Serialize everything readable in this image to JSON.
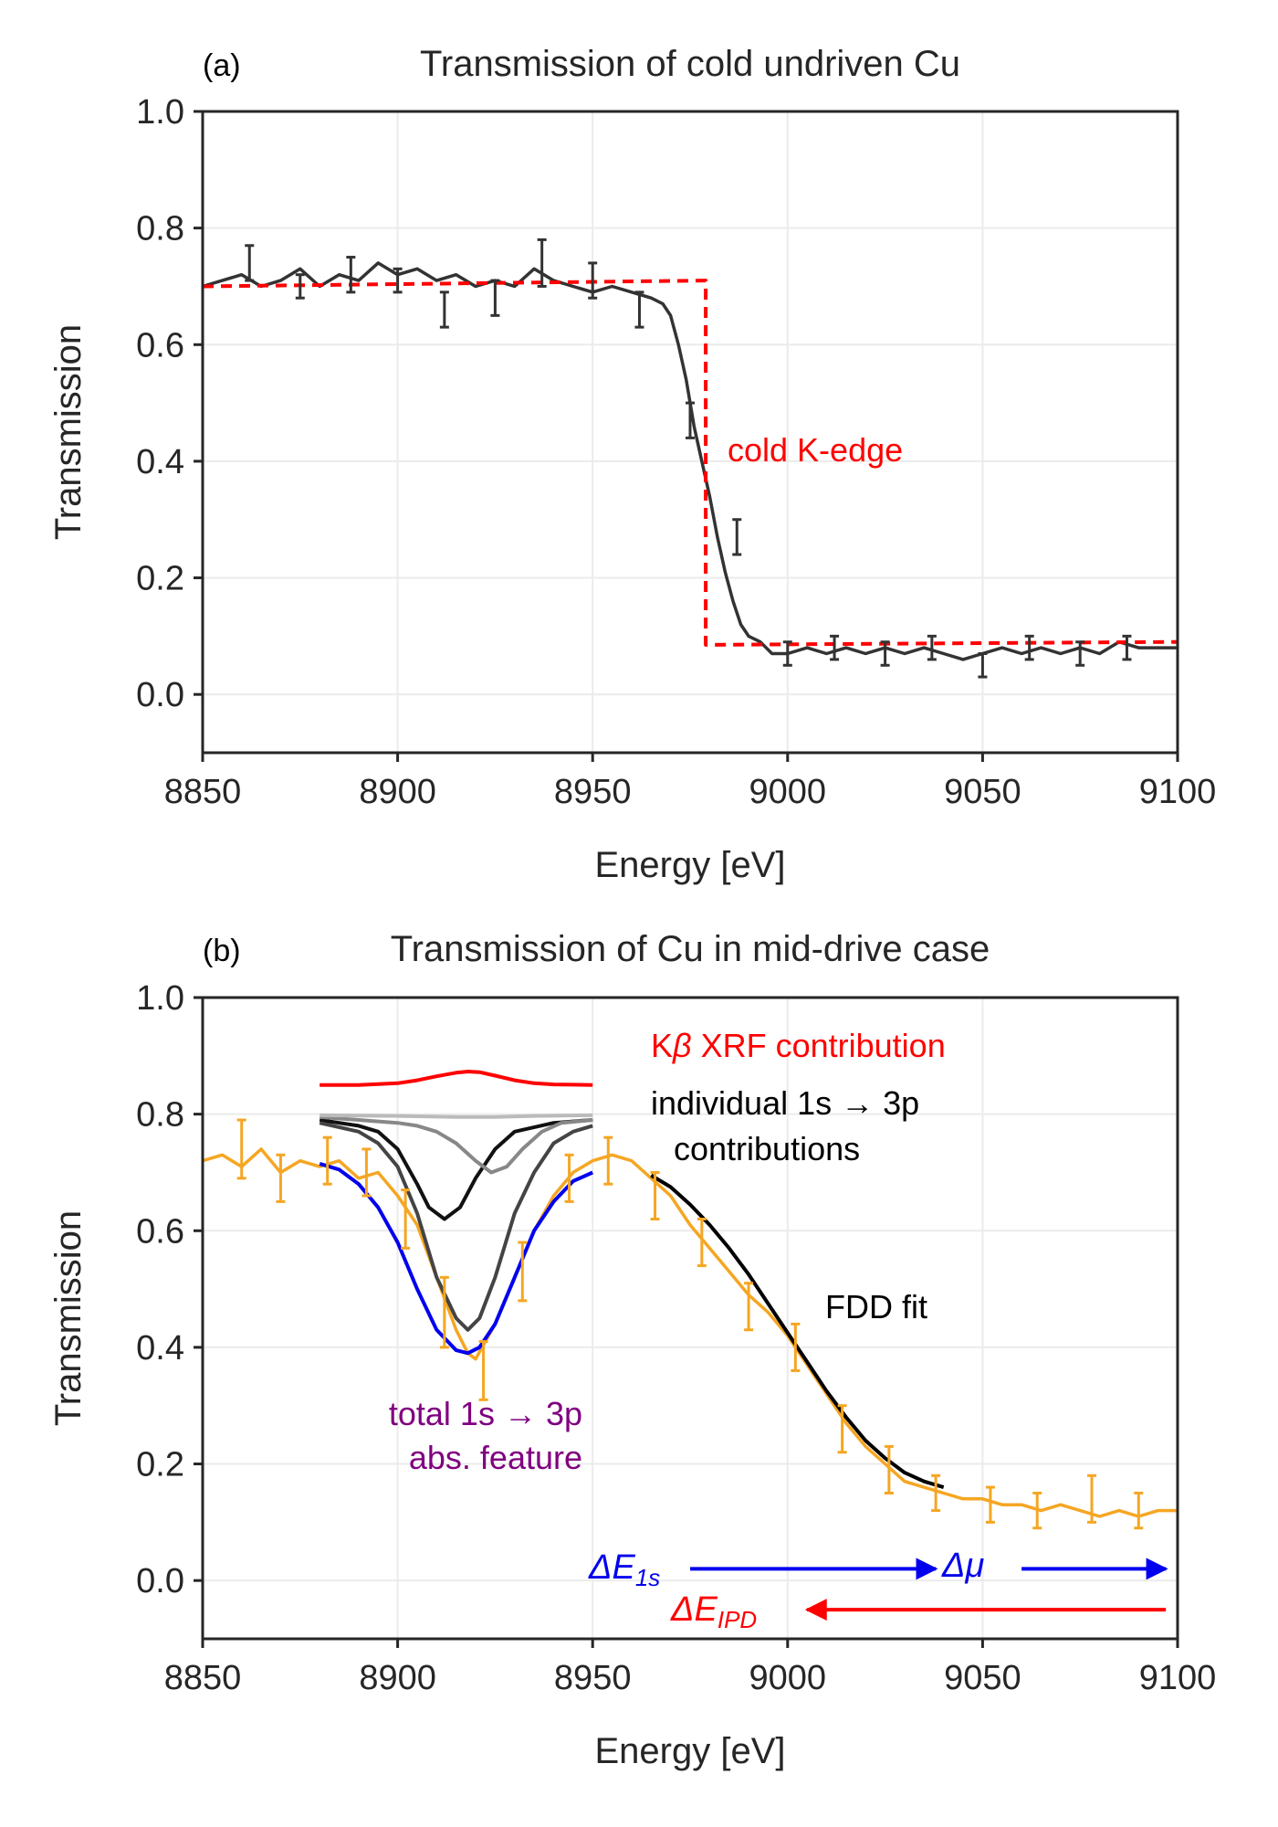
{
  "chart_data": [
    {
      "panel": "(a)",
      "type": "line",
      "title": "Transmission of cold undriven Cu",
      "xlabel": "Energy [eV]",
      "ylabel": "Transmission",
      "xlim": [
        8850,
        9100
      ],
      "ylim": [
        -0.1,
        1.0
      ],
      "xticks": [
        "8850",
        "8900",
        "8950",
        "9000",
        "9050",
        "9100"
      ],
      "yticks": [
        "1.0",
        "0.8",
        "0.6",
        "0.4",
        "0.2",
        "0.0"
      ],
      "grid": true,
      "series": [
        {
          "name": "measured transmission",
          "color": "#333333",
          "x": [
            8850,
            8855,
            8860,
            8865,
            8870,
            8875,
            8880,
            8885,
            8890,
            8895,
            8900,
            8905,
            8910,
            8915,
            8920,
            8925,
            8930,
            8935,
            8940,
            8945,
            8950,
            8955,
            8960,
            8965,
            8968,
            8970,
            8972,
            8974,
            8976,
            8978,
            8980,
            8982,
            8984,
            8986,
            8988,
            8990,
            8993,
            8996,
            9000,
            9005,
            9010,
            9015,
            9020,
            9025,
            9030,
            9035,
            9040,
            9045,
            9050,
            9055,
            9060,
            9065,
            9070,
            9075,
            9080,
            9085,
            9090,
            9095,
            9100
          ],
          "y": [
            0.7,
            0.71,
            0.72,
            0.7,
            0.71,
            0.73,
            0.7,
            0.72,
            0.71,
            0.74,
            0.72,
            0.73,
            0.71,
            0.72,
            0.7,
            0.71,
            0.7,
            0.73,
            0.71,
            0.7,
            0.69,
            0.7,
            0.69,
            0.68,
            0.67,
            0.65,
            0.6,
            0.54,
            0.46,
            0.4,
            0.34,
            0.27,
            0.21,
            0.16,
            0.12,
            0.1,
            0.09,
            0.07,
            0.07,
            0.08,
            0.07,
            0.08,
            0.07,
            0.08,
            0.07,
            0.08,
            0.07,
            0.06,
            0.07,
            0.08,
            0.07,
            0.08,
            0.07,
            0.08,
            0.07,
            0.09,
            0.08,
            0.08,
            0.08
          ]
        },
        {
          "name": "cold K-edge",
          "color": "#ff0000",
          "style": "dashed",
          "x": [
            8850,
            8979,
            8979,
            9100
          ],
          "y": [
            0.7,
            0.71,
            0.085,
            0.09
          ]
        }
      ],
      "error_bars": {
        "x": [
          8862,
          8875,
          8888,
          8900,
          8912,
          8925,
          8937,
          8950,
          8962,
          8975,
          8987,
          9000,
          9012,
          9025,
          9037,
          9050,
          9062,
          9075,
          9087
        ],
        "y": [
          0.74,
          0.7,
          0.72,
          0.71,
          0.66,
          0.68,
          0.74,
          0.71,
          0.66,
          0.47,
          0.27,
          0.07,
          0.08,
          0.07,
          0.08,
          0.05,
          0.08,
          0.07,
          0.08
        ],
        "err": [
          0.03,
          0.02,
          0.03,
          0.02,
          0.03,
          0.03,
          0.04,
          0.03,
          0.03,
          0.03,
          0.03,
          0.02,
          0.02,
          0.02,
          0.02,
          0.02,
          0.02,
          0.02,
          0.02
        ]
      },
      "annotations": [
        {
          "text": "cold K-edge",
          "color": "#ff0000"
        }
      ]
    },
    {
      "panel": "(b)",
      "type": "line",
      "title": "Transmission of Cu in mid-drive case",
      "xlabel": "Energy [eV]",
      "ylabel": "Transmission",
      "xlim": [
        8850,
        9100
      ],
      "ylim": [
        -0.1,
        1.0
      ],
      "xticks": [
        "8850",
        "8900",
        "8950",
        "9000",
        "9050",
        "9100"
      ],
      "yticks": [
        "1.0",
        "0.8",
        "0.6",
        "0.4",
        "0.2",
        "0.0"
      ],
      "grid": true,
      "series": [
        {
          "name": "measured transmission",
          "color": "#f5a623",
          "x": [
            8850,
            8855,
            8860,
            8865,
            8870,
            8875,
            8880,
            8885,
            8890,
            8895,
            8900,
            8905,
            8910,
            8915,
            8918,
            8920,
            8925,
            8930,
            8935,
            8940,
            8945,
            8950,
            8955,
            8960,
            8965,
            8970,
            8975,
            8980,
            8985,
            8990,
            8995,
            9000,
            9005,
            9010,
            9015,
            9020,
            9025,
            9030,
            9035,
            9040,
            9045,
            9050,
            9055,
            9060,
            9065,
            9070,
            9075,
            9080,
            9085,
            9090,
            9095,
            9100
          ],
          "y": [
            0.72,
            0.73,
            0.71,
            0.74,
            0.7,
            0.72,
            0.71,
            0.72,
            0.69,
            0.7,
            0.66,
            0.61,
            0.52,
            0.43,
            0.39,
            0.38,
            0.44,
            0.52,
            0.6,
            0.66,
            0.7,
            0.72,
            0.73,
            0.72,
            0.69,
            0.66,
            0.61,
            0.57,
            0.53,
            0.49,
            0.46,
            0.42,
            0.37,
            0.32,
            0.27,
            0.23,
            0.2,
            0.17,
            0.16,
            0.15,
            0.14,
            0.14,
            0.13,
            0.13,
            0.12,
            0.13,
            0.12,
            0.11,
            0.12,
            0.11,
            0.12,
            0.12
          ]
        },
        {
          "name": "total 1s → 3p abs. feature",
          "color": "#0000ee",
          "x": [
            8880,
            8885,
            8890,
            8895,
            8900,
            8905,
            8910,
            8915,
            8918,
            8921,
            8925,
            8930,
            8935,
            8940,
            8945,
            8950
          ],
          "y": [
            0.715,
            0.705,
            0.68,
            0.64,
            0.58,
            0.5,
            0.43,
            0.395,
            0.39,
            0.4,
            0.44,
            0.52,
            0.6,
            0.65,
            0.685,
            0.7
          ]
        },
        {
          "name": "Kβ XRF contribution",
          "color": "#ff0000",
          "x": [
            8880,
            8890,
            8900,
            8905,
            8910,
            8915,
            8918,
            8921,
            8925,
            8930,
            8935,
            8940,
            8950
          ],
          "y": [
            0.85,
            0.85,
            0.853,
            0.858,
            0.865,
            0.871,
            0.873,
            0.872,
            0.866,
            0.858,
            0.853,
            0.851,
            0.85
          ]
        },
        {
          "name": "1s → 3p contribution 1",
          "color": "#111111",
          "x": [
            8880,
            8890,
            8895,
            8900,
            8905,
            8908,
            8912,
            8916,
            8920,
            8925,
            8930,
            8940,
            8950
          ],
          "y": [
            0.79,
            0.78,
            0.77,
            0.74,
            0.68,
            0.64,
            0.62,
            0.64,
            0.69,
            0.74,
            0.77,
            0.785,
            0.79
          ]
        },
        {
          "name": "1s → 3p contribution 2",
          "color": "#444444",
          "x": [
            8880,
            8890,
            8895,
            8900,
            8905,
            8910,
            8915,
            8918,
            8921,
            8925,
            8930,
            8935,
            8940,
            8945,
            8950
          ],
          "y": [
            0.785,
            0.77,
            0.75,
            0.71,
            0.63,
            0.52,
            0.45,
            0.43,
            0.45,
            0.52,
            0.63,
            0.7,
            0.75,
            0.77,
            0.78
          ]
        },
        {
          "name": "1s → 3p contribution 3",
          "color": "#888888",
          "x": [
            8880,
            8890,
            8900,
            8905,
            8910,
            8915,
            8920,
            8924,
            8928,
            8932,
            8937,
            8942,
            8950
          ],
          "y": [
            0.795,
            0.79,
            0.785,
            0.78,
            0.77,
            0.75,
            0.72,
            0.7,
            0.71,
            0.74,
            0.77,
            0.785,
            0.79
          ]
        },
        {
          "name": "1s → 3p contribution 4",
          "color": "#bbbbbb",
          "x": [
            8880,
            8900,
            8915,
            8925,
            8935,
            8950
          ],
          "y": [
            0.798,
            0.797,
            0.795,
            0.795,
            0.797,
            0.798
          ]
        },
        {
          "name": "FDD fit",
          "color": "#000000",
          "x": [
            8965,
            8970,
            8975,
            8980,
            8985,
            8990,
            8995,
            9000,
            9005,
            9010,
            9015,
            9020,
            9025,
            9030,
            9035,
            9040
          ],
          "y": [
            0.695,
            0.675,
            0.645,
            0.61,
            0.57,
            0.525,
            0.475,
            0.425,
            0.375,
            0.325,
            0.28,
            0.24,
            0.21,
            0.185,
            0.17,
            0.16
          ]
        }
      ],
      "error_bars": {
        "x": [
          8860,
          8870,
          8882,
          8892,
          8902,
          8912,
          8922,
          8932,
          8944,
          8954,
          8966,
          8978,
          8990,
          9002,
          9014,
          9026,
          9038,
          9052,
          9064,
          9078,
          9090
        ],
        "y": [
          0.74,
          0.69,
          0.72,
          0.7,
          0.62,
          0.46,
          0.36,
          0.53,
          0.69,
          0.72,
          0.66,
          0.58,
          0.47,
          0.4,
          0.26,
          0.19,
          0.15,
          0.13,
          0.12,
          0.14,
          0.12
        ],
        "err": [
          0.05,
          0.04,
          0.04,
          0.04,
          0.05,
          0.06,
          0.05,
          0.05,
          0.04,
          0.04,
          0.04,
          0.04,
          0.04,
          0.04,
          0.04,
          0.04,
          0.03,
          0.03,
          0.03,
          0.04,
          0.03
        ]
      },
      "annotations": [
        {
          "text_parts": [
            "K",
            "β",
            " XRF contribution"
          ],
          "color": "#ff0000"
        },
        {
          "line1": "individual 1s → 3p",
          "line2": "contributions",
          "color": "#000000"
        },
        {
          "text": "FDD fit",
          "color": "#000000"
        },
        {
          "line1": "total 1s → 3p",
          "line2": "abs. feature",
          "color": "#800080"
        }
      ],
      "arrows": [
        {
          "label": "ΔE",
          "subscript": "1s",
          "color": "#0000ee",
          "from_x": 8975,
          "to_x": 9038,
          "y": 0.02,
          "direction": "right"
        },
        {
          "label": "Δμ",
          "color": "#0000ee",
          "from_x": 9060,
          "to_x": 9097,
          "y": 0.02,
          "direction": "right"
        },
        {
          "label": "ΔE",
          "subscript": "IPD",
          "color": "#ff0000",
          "from_x": 9097,
          "to_x": 9005,
          "y": -0.05,
          "direction": "left"
        }
      ]
    }
  ]
}
